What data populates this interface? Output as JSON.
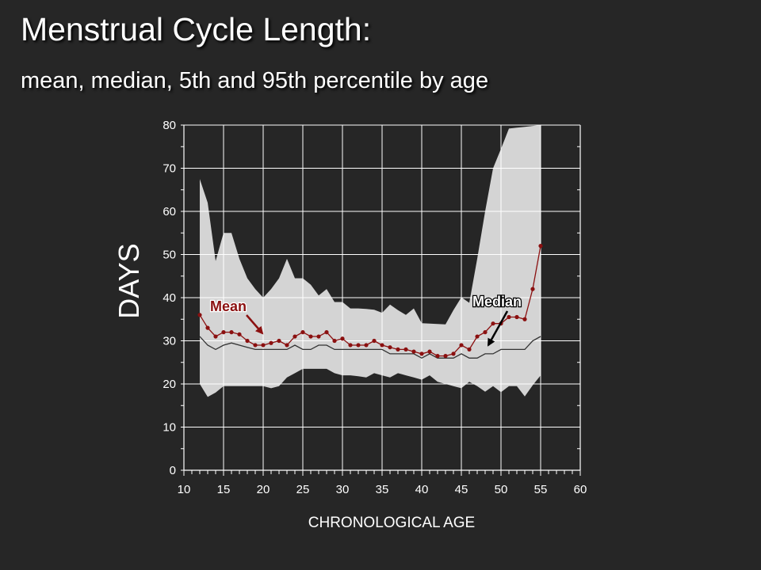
{
  "title": "Menstrual Cycle Length:",
  "subtitle": "mean, median, 5th and 95th percentile by age",
  "colors": {
    "background": "#262626",
    "band": "#d4d4d4",
    "mean": "#8b1010",
    "median": "#333333",
    "grid": "#ffffff",
    "text": "#ffffff"
  },
  "chart_data": {
    "type": "area",
    "title": "",
    "xlabel": "CHRONOLOGICAL AGE",
    "ylabel": "DAYS",
    "xlim": [
      10,
      60
    ],
    "ylim": [
      0,
      80
    ],
    "xticks": [
      10,
      15,
      20,
      25,
      30,
      35,
      40,
      45,
      50,
      55,
      60
    ],
    "yticks": [
      0,
      10,
      20,
      30,
      40,
      50,
      60,
      70,
      80
    ],
    "grid": true,
    "x": [
      12,
      13,
      14,
      15,
      16,
      17,
      18,
      19,
      20,
      21,
      22,
      23,
      24,
      25,
      26,
      27,
      28,
      29,
      30,
      31,
      32,
      33,
      34,
      35,
      36,
      37,
      38,
      39,
      40,
      41,
      42,
      43,
      44,
      45,
      46,
      47,
      48,
      49,
      50,
      51,
      52,
      53,
      54,
      55
    ],
    "series": [
      {
        "name": "95th percentile",
        "values": [
          67.5,
          62,
          48.5,
          55,
          55,
          49,
          44.5,
          42,
          40,
          42,
          44.5,
          49,
          44.5,
          44.5,
          43,
          40.5,
          42,
          39,
          39,
          37.5,
          37.5,
          37.4,
          37.2,
          36.5,
          38.4,
          37.1,
          36,
          37.5,
          34.1,
          34,
          33.9,
          33.8,
          37.1,
          40.1,
          38.8,
          49,
          60,
          70,
          74.5,
          79.2,
          79.4,
          79.6,
          79.8,
          80
        ]
      },
      {
        "name": "Mean",
        "values": [
          36,
          33,
          31,
          32,
          32,
          31.5,
          30,
          29,
          29,
          29.5,
          30,
          29,
          31,
          32,
          31,
          31,
          32,
          30,
          30.5,
          29,
          29,
          29,
          30,
          29,
          28.5,
          28,
          28,
          27.5,
          27,
          27.5,
          26.5,
          26.5,
          27,
          29,
          28,
          31,
          32,
          34,
          34,
          35.5,
          35.5,
          35,
          42,
          52
        ]
      },
      {
        "name": "Median",
        "values": [
          31,
          29,
          28,
          29,
          29.5,
          29,
          28.5,
          28,
          28,
          28,
          28,
          28,
          29,
          28,
          28,
          29,
          29,
          28,
          28,
          28,
          28,
          28,
          28,
          28,
          27,
          27,
          27,
          27,
          26,
          27,
          26,
          26,
          26,
          27,
          26,
          26,
          27,
          27,
          28,
          28,
          28,
          28,
          30,
          31
        ]
      },
      {
        "name": "5th percentile",
        "values": [
          20,
          17,
          18,
          19.5,
          19.5,
          19.5,
          19.5,
          19.5,
          19.5,
          19,
          19.5,
          21.5,
          22.5,
          23.5,
          23.5,
          23.5,
          23.5,
          22.5,
          22,
          22,
          21.8,
          21.5,
          22.5,
          22,
          21.5,
          22.5,
          22,
          21.5,
          21,
          22,
          20.5,
          20,
          19.5,
          19,
          20.5,
          19.5,
          18.2,
          19.5,
          18.1,
          19.5,
          19.5,
          17.1,
          19.7,
          22
        ]
      }
    ],
    "annotations": [
      {
        "label": "Mean",
        "color": "#8b1010"
      },
      {
        "label": "Median",
        "color": "#ffffff"
      }
    ]
  }
}
